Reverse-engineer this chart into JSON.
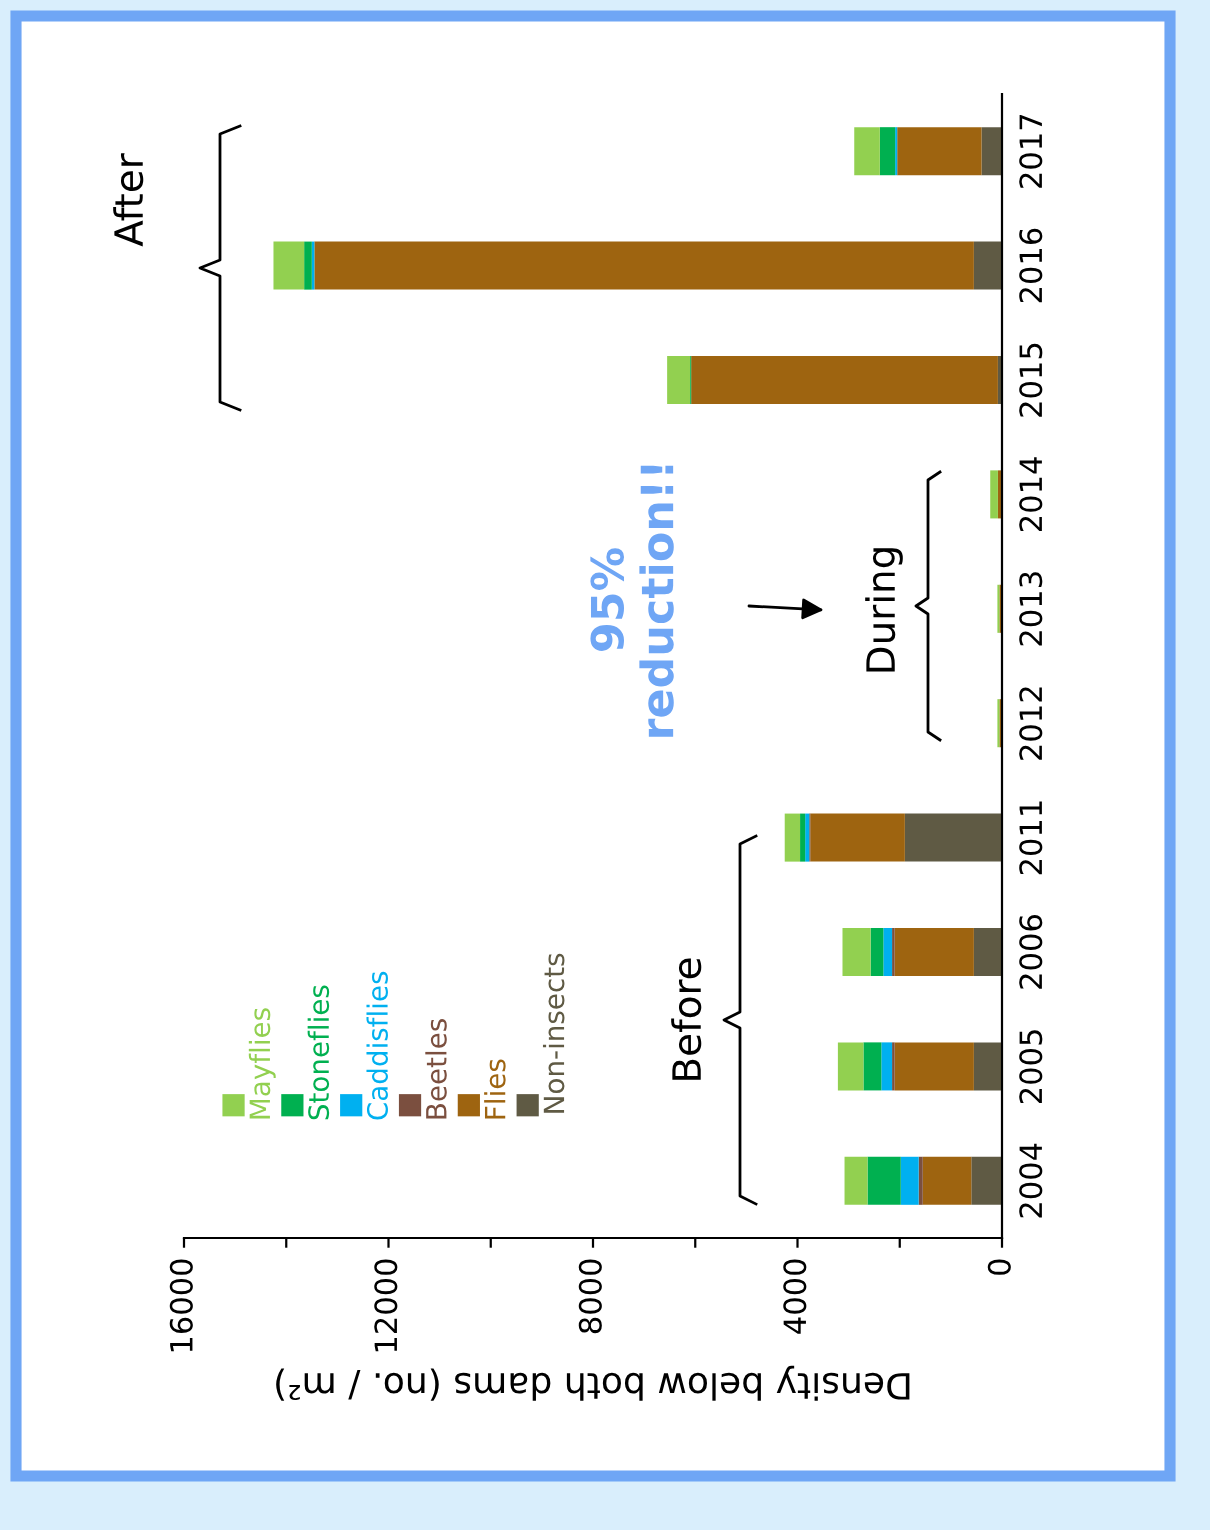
{
  "chart_data": {
    "type": "bar",
    "orientation": "horizontal",
    "stacked": true,
    "categories": [
      "2017",
      "2016",
      "2015",
      "2014",
      "2013",
      "2012",
      "2011",
      "2006",
      "2005",
      "2004"
    ],
    "series": [
      {
        "name": "Non-insects",
        "color": "#5f5a44",
        "values": [
          400,
          550,
          80,
          0,
          0,
          0,
          1900,
          550,
          550,
          600
        ]
      },
      {
        "name": "Flies",
        "color": "#9e6410",
        "values": [
          1650,
          12900,
          6000,
          80,
          50,
          50,
          1850,
          1550,
          1550,
          950
        ]
      },
      {
        "name": "Beetles",
        "color": "#7b4f3f",
        "values": [
          0,
          0,
          0,
          0,
          0,
          0,
          20,
          50,
          50,
          80
        ]
      },
      {
        "name": "Caddisflies",
        "color": "#00b0f0",
        "values": [
          40,
          50,
          0,
          0,
          0,
          0,
          80,
          170,
          210,
          350
        ]
      },
      {
        "name": "Stoneflies",
        "color": "#00b050",
        "values": [
          300,
          150,
          20,
          0,
          0,
          0,
          100,
          250,
          350,
          650
        ]
      },
      {
        "name": "Mayflies",
        "color": "#92d050",
        "values": [
          500,
          600,
          450,
          150,
          40,
          40,
          300,
          550,
          500,
          450
        ]
      }
    ],
    "xlim": [
      16000,
      0
    ],
    "xticks": [
      0,
      {
        "value": 2000,
        "label": null
      },
      4000,
      {
        "value": 6000,
        "label": null
      },
      8000,
      {
        "value": 10000,
        "label": null
      },
      12000,
      {
        "value": 14000,
        "label": null
      },
      16000
    ],
    "xlabel": "Density below both dams (no. / m²)",
    "annotations": [
      "Before",
      "During",
      "After",
      "95%\nreduction!!"
    ],
    "legend": "bottom left",
    "grid": false
  }
}
